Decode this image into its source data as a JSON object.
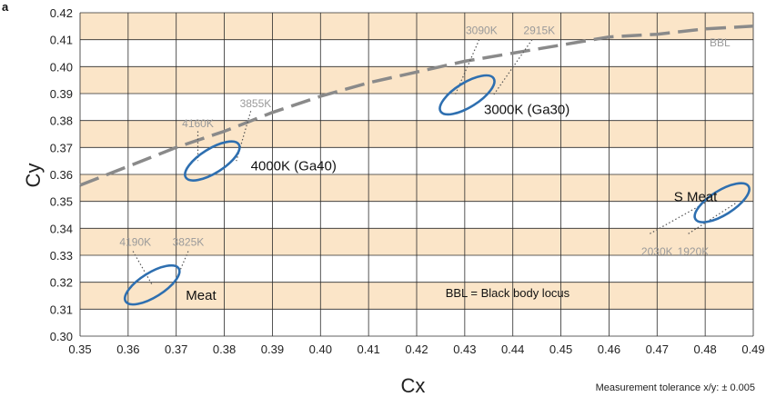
{
  "chart_data": {
    "type": "scatter",
    "panel_label": "a",
    "xlabel": "Cx",
    "ylabel": "Cy",
    "xlim": [
      0.35,
      0.49
    ],
    "ylim": [
      0.3,
      0.42
    ],
    "x_ticks": [
      "0.35",
      "0.36",
      "0.37",
      "0.38",
      "0.39",
      "0.40",
      "0.41",
      "0.42",
      "0.43",
      "0.44",
      "0.45",
      "0.46",
      "0.47",
      "0.48",
      "0.49"
    ],
    "y_ticks": [
      "0.30",
      "0.31",
      "0.32",
      "0.33",
      "0.34",
      "0.35",
      "0.36",
      "0.37",
      "0.38",
      "0.39",
      "0.40",
      "0.41",
      "0.42"
    ],
    "grid": true,
    "band_color": "#fbe5c8",
    "ellipse_color": "#2e6fb0",
    "locus_color": "#8a8a8a",
    "locus_label": "BBL",
    "locus": [
      [
        0.35,
        0.356
      ],
      [
        0.36,
        0.363
      ],
      [
        0.37,
        0.37
      ],
      [
        0.38,
        0.376
      ],
      [
        0.39,
        0.383
      ],
      [
        0.4,
        0.389
      ],
      [
        0.41,
        0.394
      ],
      [
        0.42,
        0.398
      ],
      [
        0.43,
        0.402
      ],
      [
        0.44,
        0.405
      ],
      [
        0.45,
        0.408
      ],
      [
        0.46,
        0.411
      ],
      [
        0.47,
        0.412
      ],
      [
        0.48,
        0.414
      ],
      [
        0.49,
        0.415
      ]
    ],
    "ellipses": [
      {
        "label": "Meat",
        "center": [
          0.365,
          0.319
        ],
        "rx": 0.0065,
        "ry": 0.0045,
        "rotation_deg": -32,
        "label_pos": [
          0.372,
          0.3135
        ]
      },
      {
        "label": "4000K (Ga40)",
        "center": [
          0.3775,
          0.365
        ],
        "rx": 0.0065,
        "ry": 0.0045,
        "rotation_deg": -32,
        "label_pos": [
          0.3855,
          0.3615
        ]
      },
      {
        "label": "3000K (Ga30)",
        "center": [
          0.4305,
          0.3895
        ],
        "rx": 0.0065,
        "ry": 0.0045,
        "rotation_deg": -32,
        "label_pos": [
          0.434,
          0.3825
        ]
      },
      {
        "label": "S Meat",
        "center": [
          0.4835,
          0.3495
        ],
        "rx": 0.0065,
        "ry": 0.0045,
        "rotation_deg": -32,
        "label_pos": [
          0.4735,
          0.35
        ]
      }
    ],
    "cct_lines": [
      {
        "label": "4190K",
        "from": [
          0.361,
          0.3315
        ],
        "to": [
          0.365,
          0.319
        ],
        "label_pos": [
          0.3615,
          0.3335
        ]
      },
      {
        "label": "3825K",
        "from": [
          0.3725,
          0.3315
        ],
        "to": [
          0.3695,
          0.319
        ],
        "label_pos": [
          0.3725,
          0.3335
        ]
      },
      {
        "label": "4160K",
        "from": [
          0.3745,
          0.376
        ],
        "to": [
          0.3745,
          0.365
        ],
        "label_pos": [
          0.3745,
          0.3775
        ]
      },
      {
        "label": "3855K",
        "from": [
          0.3855,
          0.3835
        ],
        "to": [
          0.3825,
          0.365
        ],
        "label_pos": [
          0.3865,
          0.385
        ]
      },
      {
        "label": "3090K",
        "from": [
          0.433,
          0.41
        ],
        "to": [
          0.428,
          0.3895
        ],
        "label_pos": [
          0.4335,
          0.412
        ]
      },
      {
        "label": "2915K",
        "from": [
          0.444,
          0.41
        ],
        "to": [
          0.436,
          0.3895
        ],
        "label_pos": [
          0.4455,
          0.412
        ]
      },
      {
        "label": "2030K",
        "from": [
          0.4685,
          0.338
        ],
        "to": [
          0.48,
          0.3495
        ],
        "label_pos": [
          0.47,
          0.33
        ]
      },
      {
        "label": "1920K",
        "from": [
          0.4765,
          0.338
        ],
        "to": [
          0.4865,
          0.3495
        ],
        "label_pos": [
          0.4775,
          0.33
        ]
      }
    ],
    "annotations": [
      {
        "text": "BBL = Black body locus",
        "pos": [
          0.426,
          0.3145
        ]
      }
    ]
  },
  "footnote": "Measurement tolerance x/y: ± 0.005"
}
